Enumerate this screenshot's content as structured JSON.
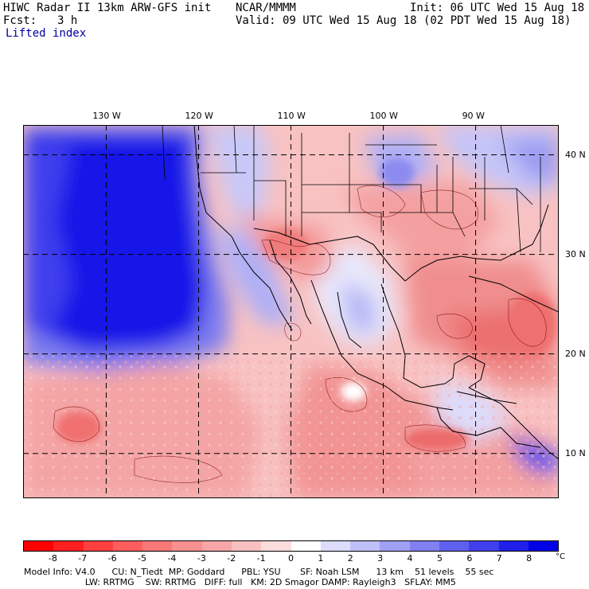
{
  "header": {
    "title_left": "HIWC Radar II 13km ARW-GFS init",
    "org": "NCAR/MMMM",
    "init": "Init: 06 UTC Wed 15 Aug 18",
    "fcst_label": "Fcst:",
    "fcst_value": "3 h",
    "valid": "Valid: 09 UTC Wed 15 Aug 18 (02 PDT Wed 15 Aug 18)",
    "field_name": "Lifted index"
  },
  "map": {
    "lon_labels": [
      "130 W",
      "120 W",
      "110 W",
      "100 W",
      "90 W"
    ],
    "lat_labels": [
      "40 N",
      "30 N",
      "20 N",
      "10 N"
    ],
    "lon_values": [
      -130,
      -120,
      -110,
      -100,
      -90
    ],
    "lat_values": [
      40,
      30,
      20,
      10
    ],
    "extent": {
      "lon_min": -139,
      "lon_max": -81,
      "lat_min": 5.5,
      "lat_max": 43
    }
  },
  "colorbar": {
    "labels": [
      "-8",
      "-7",
      "-6",
      "-5",
      "-4",
      "-3",
      "-2",
      "-1",
      "0",
      "1",
      "2",
      "3",
      "4",
      "5",
      "6",
      "7",
      "8"
    ],
    "unit": "°C",
    "colors": [
      "#ff0000",
      "#ff2020",
      "#ff4040",
      "#ff5e5e",
      "#f87878",
      "#f79090",
      "#f6a6a6",
      "#f8c0c0",
      "#fcdcdc",
      "#ffffff",
      "#dcdcfc",
      "#c0c0f8",
      "#a0a0f4",
      "#8080f0",
      "#6060ee",
      "#4040ec",
      "#2020e8",
      "#0000e6"
    ]
  },
  "footer": {
    "line1": "Model Info: V4.0      CU: N_Tiedt  MP: Goddard      PBL: YSU       SF: Noah LSM      13 km    51 levels    55 sec",
    "line2": "                      LW: RRTMG    SW: RRTMG   DIFF: full   KM: 2D Smagor DAMP: Rayleigh3   SFLAY: MM5"
  }
}
